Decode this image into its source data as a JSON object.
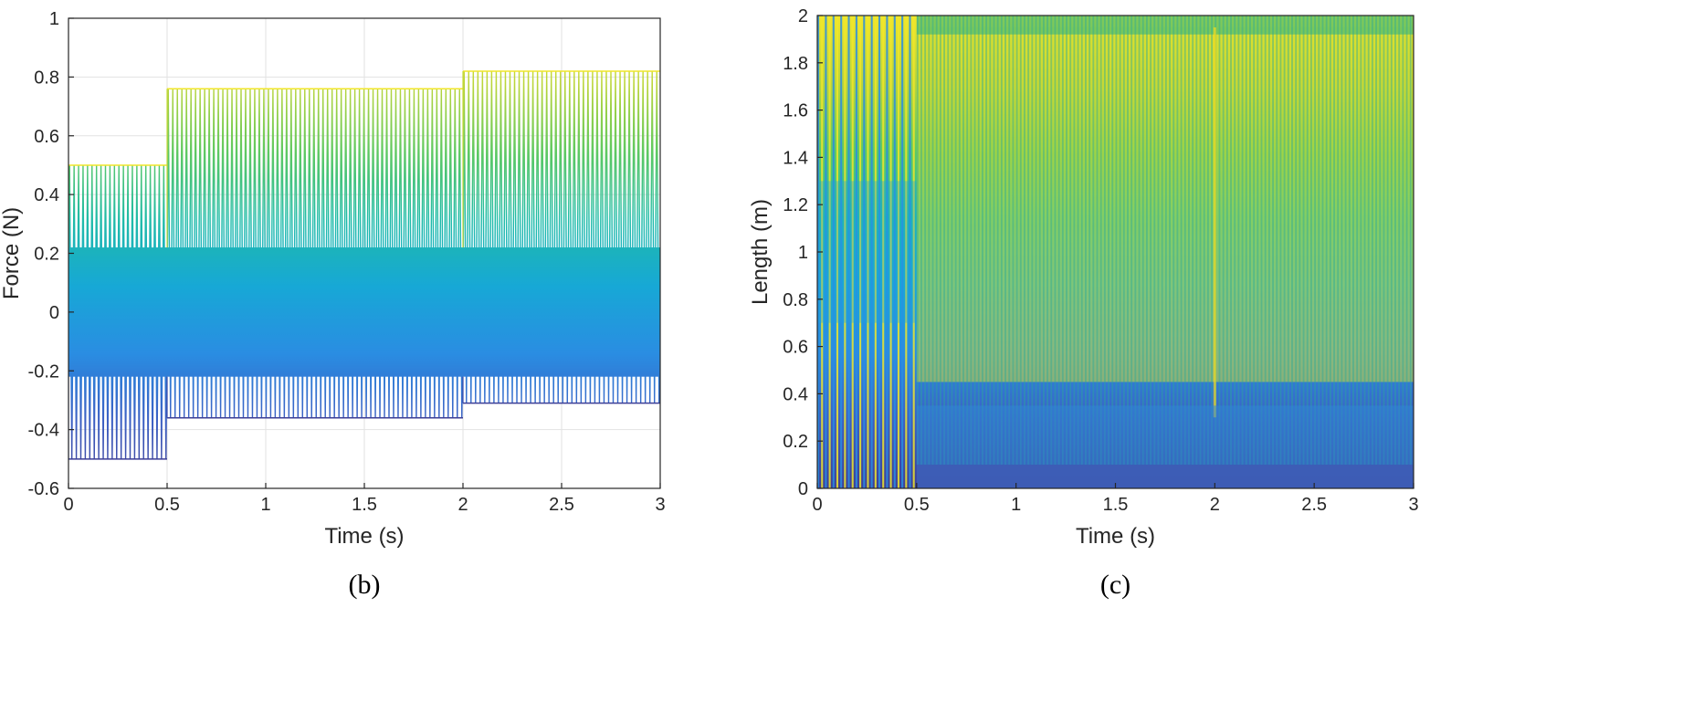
{
  "palette": [
    "#3d3f96",
    "#3b5fc3",
    "#2a8de2",
    "#17a8d6",
    "#1fbba8",
    "#5ec962",
    "#b9d53a",
    "#f0e62a"
  ],
  "chart_data": [
    {
      "type": "line",
      "caption": "(b)",
      "xlabel": "Time (s)",
      "ylabel": "Force (N)",
      "xlim": [
        0,
        3
      ],
      "ylim": [
        -0.6,
        1
      ],
      "xticks": [
        0,
        0.5,
        1,
        1.5,
        2,
        2.5,
        3
      ],
      "xtick_labels": [
        "0",
        "0.5",
        "1",
        "1.5",
        "2",
        "2.5",
        "3"
      ],
      "yticks": [
        -0.6,
        -0.4,
        -0.2,
        0,
        0.2,
        0.4,
        0.6,
        0.8,
        1
      ],
      "ytick_labels": [
        "-0.6",
        "-0.4",
        "-0.2",
        "0",
        "0.2",
        "0.4",
        "0.6",
        "0.8",
        "1"
      ],
      "grid": true,
      "segments": [
        {
          "t_start": 0,
          "t_end": 0.5,
          "max": 0.5,
          "min": -0.5,
          "inner_max": 0.22,
          "inner_min": -0.22
        },
        {
          "t_start": 0.5,
          "t_end": 2.0,
          "max": 0.76,
          "min": -0.36,
          "inner_max": 0.22,
          "inner_min": -0.22
        },
        {
          "t_start": 2.0,
          "t_end": 3.0,
          "max": 0.82,
          "min": -0.31,
          "inner_max": 0.22,
          "inner_min": -0.22
        }
      ]
    },
    {
      "type": "heatmap",
      "caption": "(c)",
      "xlabel": "Time (s)",
      "ylabel": "Length (m)",
      "xlim": [
        0,
        3
      ],
      "ylim": [
        0,
        2
      ],
      "xticks": [
        0,
        0.5,
        1,
        1.5,
        2,
        2.5,
        3
      ],
      "xtick_labels": [
        "0",
        "0.5",
        "1",
        "1.5",
        "2",
        "2.5",
        "3"
      ],
      "yticks": [
        0,
        0.2,
        0.4,
        0.6,
        0.8,
        1,
        1.2,
        1.4,
        1.6,
        1.8,
        2
      ],
      "ytick_labels": [
        "0",
        "0.2",
        "0.4",
        "0.6",
        "0.8",
        "1",
        "1.2",
        "1.4",
        "1.6",
        "1.8",
        "2"
      ],
      "grid": false,
      "regions": [
        {
          "t_start": 0,
          "t_end": 0.5,
          "pattern": "striped",
          "stripe_count": 26
        },
        {
          "t_start": 0.5,
          "t_end": 3.0,
          "pattern": "striped",
          "stripe_count": 130
        }
      ]
    }
  ]
}
